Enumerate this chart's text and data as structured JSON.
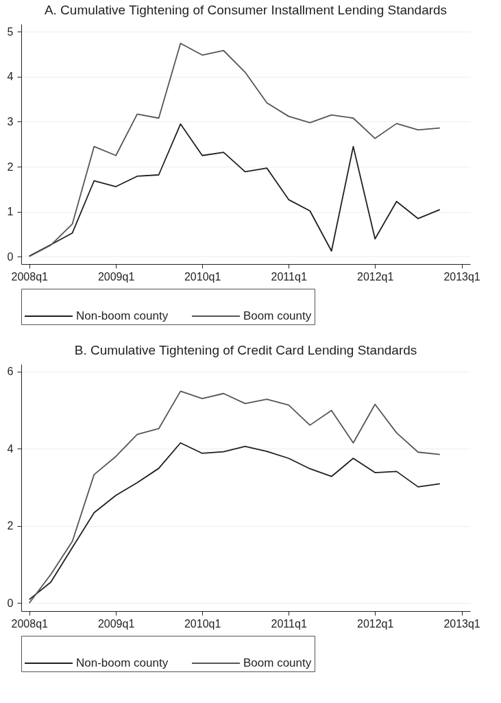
{
  "chart_data": [
    {
      "type": "line",
      "title": "A. Cumulative Tightening of Consumer Installment Lending Standards",
      "x": [
        "2008-01",
        "2008-04",
        "2008-07",
        "2008-10",
        "2009-01",
        "2009-04",
        "2009-07",
        "2009-10",
        "2010-01",
        "2010-04",
        "2010-07",
        "2010-10",
        "2011-01",
        "2011-04",
        "2011-07",
        "2011-10",
        "2012-01",
        "2012-04",
        "2012-07",
        "2012-10"
      ],
      "series": [
        {
          "name": "Non-boom county",
          "color": "#1f1f1f",
          "values": [
            0.02,
            0.27,
            0.53,
            1.69,
            1.56,
            1.79,
            1.82,
            2.95,
            2.25,
            2.32,
            1.89,
            1.97,
            1.27,
            1.02,
            0.13,
            2.45,
            0.4,
            1.23,
            0.85,
            1.05
          ]
        },
        {
          "name": "Boom county",
          "color": "#555555",
          "values": [
            0.01,
            0.26,
            0.73,
            2.45,
            2.25,
            3.17,
            3.08,
            4.74,
            4.48,
            4.58,
            4.1,
            3.42,
            3.12,
            2.98,
            3.15,
            3.08,
            2.63,
            2.96,
            2.82,
            2.86
          ]
        }
      ],
      "xlim": [
        "2007-11-28",
        "2013-02-06"
      ],
      "xticks": [
        {
          "value": "2008-01",
          "label": "2008q1"
        },
        {
          "value": "2009-01",
          "label": "2009q1"
        },
        {
          "value": "2010-01",
          "label": "2010q1"
        },
        {
          "value": "2011-01",
          "label": "2011q1"
        },
        {
          "value": "2012-01",
          "label": "2012q1"
        },
        {
          "value": "2013-01",
          "label": "2013q1"
        }
      ],
      "ylim": [
        -0.16,
        5.17
      ],
      "yticks": [
        0,
        1,
        2,
        3,
        4,
        5
      ],
      "grid": "y",
      "legend": "bottom"
    },
    {
      "type": "line",
      "title": "B. Cumulative Tightening of Credit Card Lending Standards",
      "x": [
        "2008-01",
        "2008-04",
        "2008-07",
        "2008-10",
        "2009-01",
        "2009-04",
        "2009-07",
        "2009-10",
        "2010-01",
        "2010-04",
        "2010-07",
        "2010-10",
        "2011-01",
        "2011-04",
        "2011-07",
        "2011-10",
        "2012-01",
        "2012-04",
        "2012-07",
        "2012-10"
      ],
      "series": [
        {
          "name": "Non-boom county",
          "color": "#1f1f1f",
          "values": [
            0.09,
            0.54,
            1.44,
            2.34,
            2.79,
            3.12,
            3.49,
            4.15,
            3.88,
            3.92,
            4.06,
            3.93,
            3.75,
            3.48,
            3.28,
            3.75,
            3.38,
            3.41,
            3.01,
            3.09
          ]
        },
        {
          "name": "Boom county",
          "color": "#555555",
          "values": [
            0.0,
            0.74,
            1.6,
            3.33,
            3.8,
            4.37,
            4.52,
            5.49,
            5.3,
            5.43,
            5.17,
            5.28,
            5.13,
            4.61,
            4.99,
            4.15,
            5.15,
            4.41,
            3.91,
            3.85
          ]
        }
      ],
      "xlim": [
        "2007-11-28",
        "2013-02-06"
      ],
      "xticks": [
        {
          "value": "2008-01",
          "label": "2008q1"
        },
        {
          "value": "2009-01",
          "label": "2009q1"
        },
        {
          "value": "2010-01",
          "label": "2010q1"
        },
        {
          "value": "2011-01",
          "label": "2011q1"
        },
        {
          "value": "2012-01",
          "label": "2012q1"
        },
        {
          "value": "2013-01",
          "label": "2013q1"
        }
      ],
      "ylim": [
        -0.21,
        6.19
      ],
      "yticks": [
        0,
        2,
        4,
        6
      ],
      "grid": "y",
      "legend": "bottom"
    }
  ]
}
